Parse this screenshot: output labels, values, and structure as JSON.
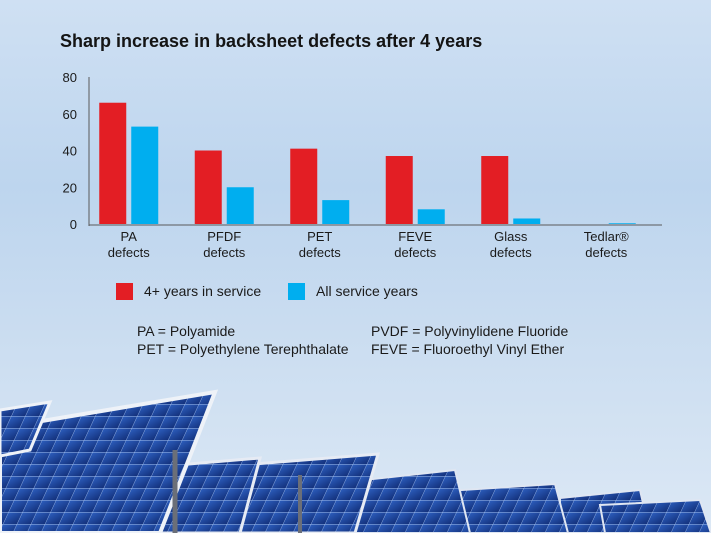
{
  "title": "Sharp increase in backsheet defects after 4 years",
  "colors": {
    "series_4plus": "#e31e24",
    "series_all": "#00aeef"
  },
  "chart_data": {
    "type": "bar",
    "title": "Sharp increase in backsheet defects after 4 years",
    "categories": [
      [
        "PA",
        "defects"
      ],
      [
        "PFDF",
        "defects"
      ],
      [
        "PET",
        "defects"
      ],
      [
        "FEVE",
        "defects"
      ],
      [
        "Glass",
        "defects"
      ],
      [
        "Tedlar®",
        "defects"
      ]
    ],
    "series": [
      {
        "name": "4+ years in service",
        "values": [
          66,
          40,
          41,
          37,
          37,
          0
        ]
      },
      {
        "name": "All service years",
        "values": [
          53,
          20,
          13,
          8,
          3,
          0.4
        ]
      }
    ],
    "ylim": [
      0,
      80
    ],
    "yticks": [
      "80",
      "60",
      "40",
      "20",
      "0"
    ],
    "grid": false,
    "legend_position": "bottom"
  },
  "legend": {
    "items": [
      {
        "label": "4+ years in service"
      },
      {
        "label": "All service years"
      }
    ]
  },
  "notes": {
    "left": [
      "PA = Polyamide",
      "PET = Polyethylene Terephthalate"
    ],
    "right": [
      "PVDF = Polyvinylidene Fluoride",
      "FEVE = Fluoroethyl Vinyl Ether"
    ]
  }
}
